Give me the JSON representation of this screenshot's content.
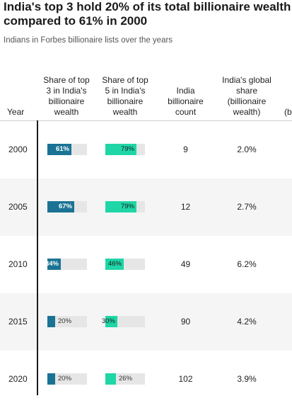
{
  "title_line1": "India's top 3 hold 20% of its total billionaire wealth",
  "title_line2": "compared to 61% in 2000",
  "subtitle": "Indians in Forbes billionaire lists over the years",
  "headers": {
    "year": "Year",
    "col1": "Share of top 3 in India's billionaire wealth",
    "col2": "Share of top 5 in India's billionaire wealth",
    "col3": "India billionaire count",
    "col4": "India's global share (billionaire wealth)",
    "col5": "(b"
  },
  "colors": {
    "top3": "#1a7394",
    "top5": "#1fd6a7",
    "track": "#e6e6e6"
  },
  "chart_data": {
    "type": "table",
    "columns": [
      "Year",
      "Share of top 3 in India's billionaire wealth",
      "Share of top 5 in India's billionaire wealth",
      "India billionaire count",
      "India's global share (billionaire wealth)"
    ],
    "rows": [
      {
        "year": "2000",
        "top3": 61,
        "top5": 79,
        "count": "9",
        "global_share": "2.0%"
      },
      {
        "year": "2005",
        "top3": 67,
        "top5": 79,
        "count": "12",
        "global_share": "2.7%"
      },
      {
        "year": "2010",
        "top3": 34,
        "top5": 46,
        "count": "49",
        "global_share": "6.2%"
      },
      {
        "year": "2015",
        "top3": 20,
        "top5": 30,
        "count": "90",
        "global_share": "4.2%"
      },
      {
        "year": "2020",
        "top3": 20,
        "top5": 26,
        "count": "102",
        "global_share": "3.9%"
      }
    ]
  }
}
